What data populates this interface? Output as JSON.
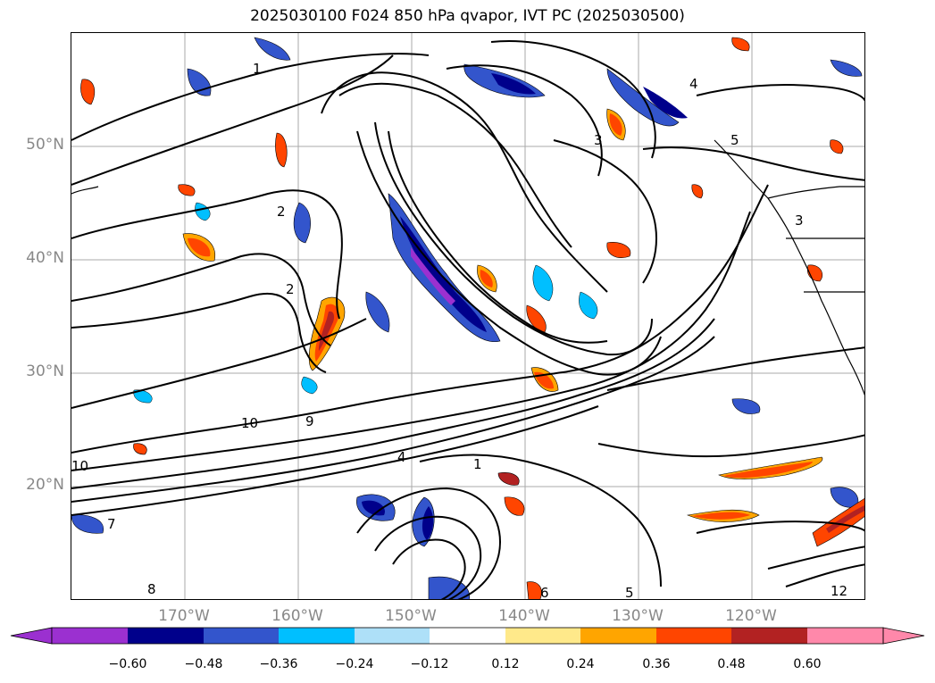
{
  "title": "2025030100 F024 850 hPa qvapor, IVT PC (2025030500)",
  "lat_labels": [
    "50°N",
    "40°N",
    "30°N",
    "20°N"
  ],
  "lon_labels": [
    "170°W",
    "160°W",
    "150°W",
    "140°W",
    "130°W",
    "120°W"
  ],
  "colorbar": {
    "ticks": [
      "−0.60",
      "−0.48",
      "−0.36",
      "−0.24",
      "−0.12",
      "0.12",
      "0.24",
      "0.36",
      "0.48",
      "0.60"
    ],
    "colors": [
      "#9b30d0",
      "#00008b",
      "#3355cc",
      "#00bfff",
      "#aee0f8",
      "#ffffff",
      "#ffe98a",
      "#ffa500",
      "#ff4500",
      "#b22222",
      "#ff88aa"
    ]
  },
  "contour_labels": [
    "1",
    "2",
    "3",
    "4",
    "5",
    "10",
    "9",
    "8",
    "7",
    "6",
    "2",
    "1",
    "3",
    "4",
    "5",
    "10",
    "12"
  ]
}
